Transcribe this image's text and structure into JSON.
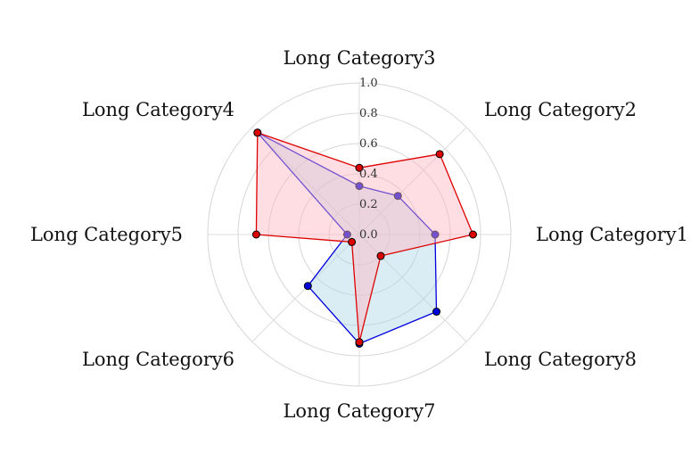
{
  "chart_data": {
    "type": "radar",
    "categories": [
      "Long Category1",
      "Long Category2",
      "Long Category3",
      "Long Category4",
      "Long Category5",
      "Long Category6",
      "Long Category7",
      "Long Category8"
    ],
    "rlim": [
      0,
      1
    ],
    "radial_ticks": [
      0.0,
      0.2,
      0.4,
      0.6,
      0.8,
      1.0
    ],
    "radial_tick_labels": [
      "0.0",
      "0.2",
      "0.4",
      "0.6",
      "0.8",
      "1.0"
    ],
    "grid": true,
    "series": [
      {
        "values": [
          0.5,
          0.36,
          0.32,
          0.95,
          0.08,
          0.48,
          0.72,
          0.72
        ],
        "color": "#0000dd",
        "fill": "#add8e6"
      },
      {
        "values": [
          0.75,
          0.75,
          0.44,
          0.95,
          0.68,
          0.07,
          0.71,
          0.2
        ],
        "color": "#dd0000",
        "fill": "#ffb6c1"
      }
    ]
  }
}
